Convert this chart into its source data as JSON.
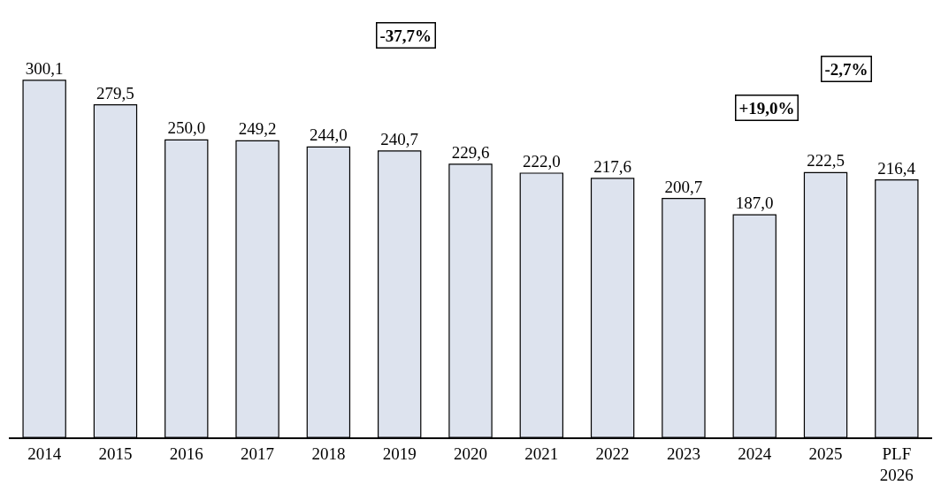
{
  "chart_data": {
    "type": "bar",
    "categories": [
      "2014",
      "2015",
      "2016",
      "2017",
      "2018",
      "2019",
      "2020",
      "2021",
      "2022",
      "2023",
      "2024",
      "2025",
      "PLF 2026"
    ],
    "values": [
      300.1,
      279.5,
      250.0,
      249.2,
      244.0,
      240.7,
      229.6,
      222.0,
      217.6,
      200.7,
      187.0,
      222.5,
      216.4
    ],
    "value_labels": [
      "300,1",
      "279,5",
      "250,0",
      "249,2",
      "244,0",
      "240,7",
      "229,6",
      "222,0",
      "217,6",
      "200,7",
      "187,0",
      "222,5",
      "216,4"
    ],
    "color": "#dde3ee",
    "annotations": [
      "-37,7%",
      "+19,0%",
      "-2,7%"
    ],
    "grid": false,
    "legend": false
  }
}
